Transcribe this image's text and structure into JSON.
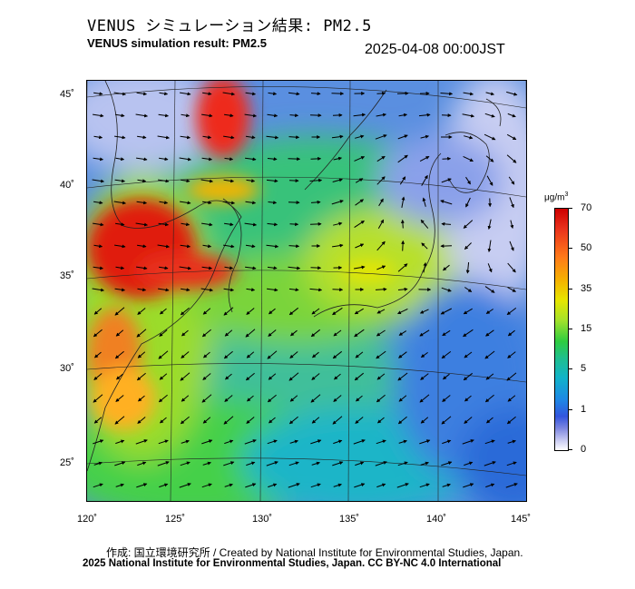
{
  "header": {
    "title_jp": "VENUS シミュレーション結果: PM2.5",
    "title_en": "VENUS simulation result: PM2.5",
    "timestamp": "2025-04-08 00:00JST"
  },
  "map": {
    "lat_labels": [
      "45˚",
      "40˚",
      "35˚",
      "30˚",
      "25˚"
    ],
    "lon_labels": [
      "120˚",
      "125˚",
      "130˚",
      "135˚",
      "140˚",
      "145˚"
    ]
  },
  "colorbar": {
    "unit": "μg/m",
    "unit_sup": "3",
    "ticks": [
      "70",
      "50",
      "35",
      "15",
      "5",
      "1",
      "0"
    ],
    "colors": {
      "high": "#cc0000",
      "mid_high": "#ff7a1a",
      "mid": "#e6e600",
      "mid_low": "#2ecc40",
      "low": "#1e88e5",
      "lowest": "#ffffff"
    }
  },
  "footer": {
    "credit": "作成: 国立環境研究所 / Created by National Institute for Environmental Studies, Japan.",
    "license": "2025 National Institute for Environmental Studies, Japan. CC BY-NC 4.0 International"
  }
}
